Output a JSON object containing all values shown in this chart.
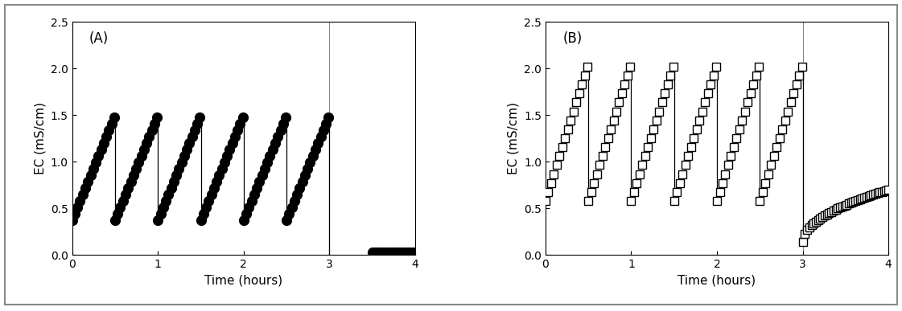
{
  "panel_A_label": "(A)",
  "panel_B_label": "(B)",
  "xlabel": "Time (hours)",
  "ylabel": "EC (mS/cm)",
  "xlim": [
    0,
    4
  ],
  "ylim": [
    0,
    2.5
  ],
  "yticks": [
    0.0,
    0.5,
    1.0,
    1.5,
    2.0,
    2.5
  ],
  "xticks": [
    0,
    1,
    2,
    3,
    4
  ],
  "vline_x": 3.0,
  "panel_A": {
    "n_cycles": 6,
    "cycle_dur": 0.5,
    "rise_start": 0.37,
    "rise_end": 1.48,
    "pts_per_cycle": 17,
    "drop_to": 0.37,
    "flat_x_start": 3.5,
    "flat_x_end": 4.0,
    "flat_y": 0.03,
    "flat_pts": 18,
    "marker": "o",
    "markersize": 8.5,
    "color": "black"
  },
  "panel_B": {
    "n_cycles": 6,
    "cycle_dur": 0.5,
    "rise_start": 0.58,
    "rise_end": 2.02,
    "pts_per_cycle": 16,
    "drop_to": 0.58,
    "phase2_y0": 0.14,
    "phase2_y1": 0.7,
    "phase2_pts": 40,
    "marker": "s",
    "markersize": 7,
    "color": "black"
  },
  "background_color": "#ffffff"
}
